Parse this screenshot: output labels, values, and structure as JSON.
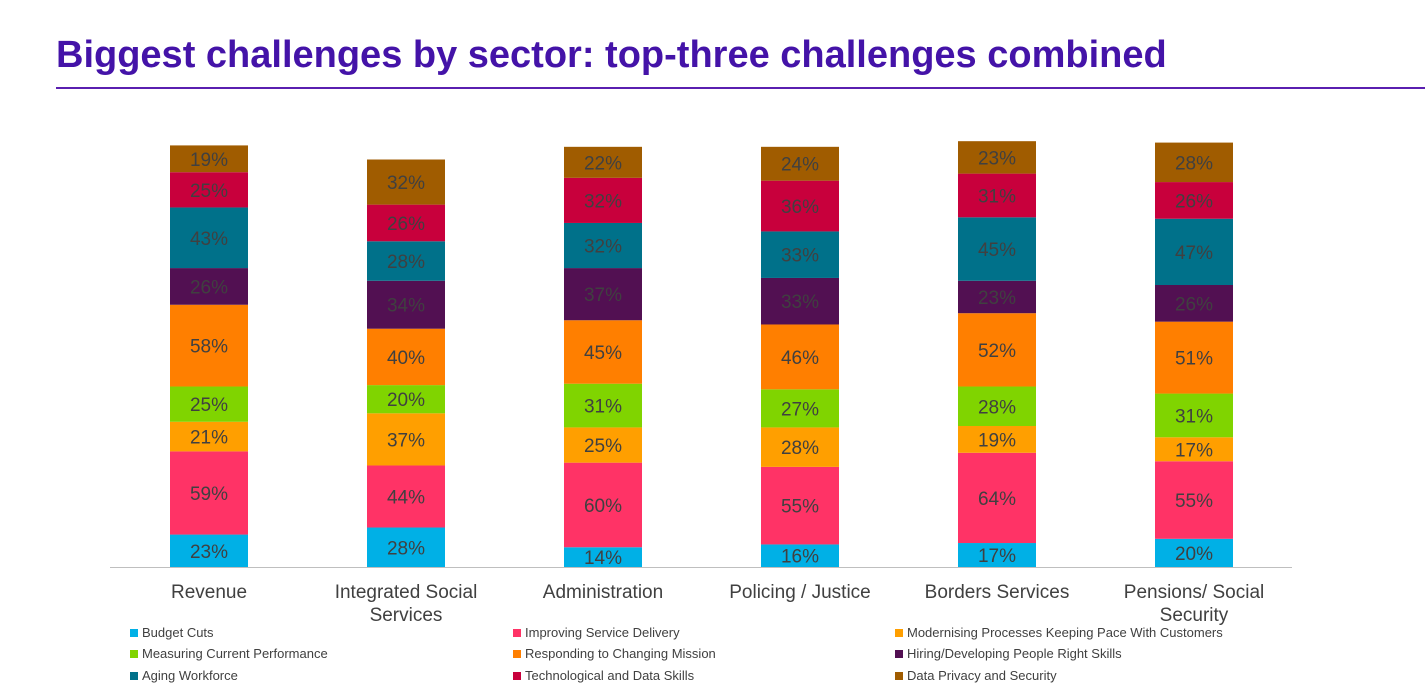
{
  "title": "Biggest challenges by sector: top-three challenges combined",
  "chart_data": {
    "type": "bar",
    "stacked": true,
    "categories": [
      "Revenue",
      "Integrated Social Services",
      "Administration",
      "Policing / Justice",
      "Borders Services",
      "Pensions/ Social Security"
    ],
    "category_lines": [
      [
        "Revenue"
      ],
      [
        "Integrated Social",
        "Services"
      ],
      [
        "Administration"
      ],
      [
        "Policing / Justice"
      ],
      [
        "Borders Services"
      ],
      [
        "Pensions/ Social",
        "Security"
      ]
    ],
    "series": [
      {
        "name": "Budget Cuts",
        "color": "#00b0e6",
        "values": [
          23,
          28,
          14,
          16,
          17,
          20
        ]
      },
      {
        "name": "Improving Service Delivery",
        "color": "#ff3366",
        "values": [
          59,
          44,
          60,
          55,
          64,
          55
        ]
      },
      {
        "name": "Modernising Processes Keeping Pace With Customers",
        "color": "#ff9f00",
        "values": [
          21,
          37,
          25,
          28,
          19,
          17
        ]
      },
      {
        "name": "Measuring Current Performance",
        "color": "#80d400",
        "values": [
          25,
          20,
          31,
          27,
          28,
          31
        ]
      },
      {
        "name": "Responding to Changing Mission",
        "color": "#ff7f00",
        "values": [
          58,
          40,
          45,
          46,
          52,
          51
        ]
      },
      {
        "name": "Hiring/Developing People Right Skills",
        "color": "#521052",
        "values": [
          26,
          34,
          37,
          33,
          23,
          26
        ]
      },
      {
        "name": "Aging Workforce",
        "color": "#00718a",
        "values": [
          43,
          28,
          32,
          33,
          45,
          47
        ]
      },
      {
        "name": "Technological and Data Skills",
        "color": "#c8003c",
        "values": [
          25,
          26,
          32,
          36,
          31,
          26
        ]
      },
      {
        "name": "Data Privacy and Security",
        "color": "#a05c00",
        "values": [
          19,
          32,
          22,
          24,
          23,
          28
        ]
      }
    ],
    "value_suffix": "%",
    "axis_line_color": "#bfbfbf",
    "label_color": "#404040",
    "legend_position": "bottom",
    "legend_order": [
      "Budget Cuts",
      "Improving Service Delivery",
      "Modernising Processes Keeping Pace With Customers",
      "Measuring Current Performance",
      "Responding to Changing Mission",
      "Hiring/Developing People Right Skills",
      "Aging Workforce",
      "Technological and Data Skills",
      "Data Privacy and Security"
    ]
  }
}
